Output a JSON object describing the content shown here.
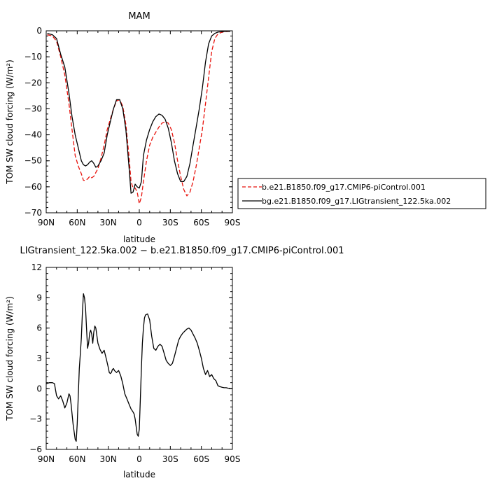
{
  "chart_data": [
    {
      "type": "line",
      "title": "MAM",
      "xlabel": "latitude",
      "ylabel": "TOM SW cloud forcing (W/m²)",
      "xlim": [
        90,
        -90
      ],
      "ylim": [
        -70,
        0
      ],
      "x_ticks": [
        90,
        60,
        30,
        0,
        -30,
        -60,
        -90
      ],
      "x_tick_labels": [
        "90N",
        "60N",
        "30N",
        "0",
        "30S",
        "60S",
        "90S"
      ],
      "y_ticks": [
        0,
        -10,
        -20,
        -30,
        -40,
        -50,
        -60,
        -70
      ],
      "y_tick_labels": [
        "0",
        "−10",
        "−20",
        "−30",
        "−40",
        "−50",
        "−60",
        "−70"
      ],
      "legend_position": "right",
      "series": [
        {
          "name": "b.e21.B1850.f09_g17.CMIP6-piControl.001",
          "color": "#e8120c",
          "dash": "dashed",
          "x": [
            89,
            84,
            80,
            76,
            72,
            68,
            65,
            62,
            59,
            56,
            54,
            52,
            50,
            48,
            46,
            44,
            42,
            40,
            37,
            34,
            31,
            28,
            25,
            22,
            19,
            16,
            13,
            10,
            8,
            6,
            4,
            2,
            0,
            -2,
            -4,
            -7,
            -10,
            -13,
            -16,
            -19,
            -22,
            -25,
            -28,
            -31,
            -34,
            -37,
            -40,
            -43,
            -46,
            -49,
            -52,
            -55,
            -58,
            -61,
            -64,
            -67,
            -70,
            -73,
            -76,
            -80,
            -84,
            -88
          ],
          "y": [
            -1.5,
            -2,
            -4,
            -10,
            -17,
            -28,
            -38,
            -48,
            -52,
            -55,
            -57.5,
            -57.5,
            -57,
            -56,
            -56.5,
            -56,
            -54.5,
            -53,
            -49,
            -44,
            -38,
            -34,
            -30,
            -27,
            -26.5,
            -29,
            -36,
            -48,
            -58,
            -60.5,
            -60.5,
            -62,
            -66.5,
            -64,
            -58,
            -50,
            -44,
            -41,
            -39,
            -37,
            -35.5,
            -35,
            -35.5,
            -38,
            -43,
            -50,
            -56,
            -61,
            -63.5,
            -62,
            -58,
            -52,
            -45,
            -38,
            -28,
            -18,
            -8,
            -3,
            -1.2,
            -0.5,
            -0.3,
            -0.2
          ]
        },
        {
          "name": "bg.e21.B1850.f09_g17.LIGtransient_122.5ka.002",
          "color": "#000000",
          "dash": "solid",
          "x": [
            89,
            84,
            80,
            76,
            72,
            68,
            65,
            62,
            59,
            56,
            54,
            52,
            50,
            48,
            46,
            44,
            42,
            40,
            37,
            34,
            31,
            28,
            25,
            22,
            19,
            16,
            13,
            10,
            8,
            6,
            4,
            2,
            0,
            -2,
            -4,
            -7,
            -10,
            -13,
            -16,
            -19,
            -22,
            -25,
            -28,
            -31,
            -34,
            -37,
            -40,
            -43,
            -46,
            -49,
            -52,
            -55,
            -58,
            -61,
            -64,
            -67,
            -70,
            -73,
            -76,
            -80,
            -84,
            -88
          ],
          "y": [
            -1,
            -1.5,
            -3,
            -9,
            -14,
            -24,
            -33,
            -40,
            -45,
            -50,
            -51.5,
            -52,
            -51.5,
            -50.5,
            -50,
            -51,
            -52.5,
            -52,
            -50,
            -47,
            -40,
            -35,
            -30,
            -26.5,
            -26.5,
            -30,
            -38,
            -52,
            -62.5,
            -62,
            -59,
            -60,
            -60.5,
            -58,
            -48,
            -42,
            -38,
            -35,
            -33,
            -32,
            -32.5,
            -34,
            -37.5,
            -43,
            -50,
            -55,
            -58,
            -58,
            -56,
            -51,
            -44,
            -37,
            -30,
            -22,
            -12,
            -5,
            -2,
            -1,
            -0.5,
            -0.3,
            -0.2,
            -0.2
          ]
        }
      ]
    },
    {
      "type": "line",
      "title": "LIGtransient_122.5ka.002 − b.e21.B1850.f09_g17.CMIP6-piControl.001",
      "xlabel": "latitude",
      "ylabel": "TOM SW cloud forcing (W/m²)",
      "xlim": [
        90,
        -90
      ],
      "ylim": [
        -6,
        12
      ],
      "x_ticks": [
        90,
        60,
        30,
        0,
        -30,
        -60,
        -90
      ],
      "x_tick_labels": [
        "90N",
        "60N",
        "30N",
        "0",
        "30S",
        "60S",
        "90S"
      ],
      "y_ticks": [
        12,
        9,
        6,
        3,
        0,
        -3,
        -6
      ],
      "y_tick_labels": [
        "12",
        "9",
        "6",
        "3",
        "0",
        "−3",
        "−6"
      ],
      "series": [
        {
          "color": "#000000",
          "dash": "solid",
          "x": [
            90,
            87,
            84,
            82,
            80,
            78,
            76,
            74,
            72,
            70,
            68,
            67,
            66,
            64,
            62,
            61,
            60,
            58,
            57,
            56,
            55,
            54,
            53,
            52,
            51,
            50,
            49,
            48,
            47,
            46,
            45,
            44,
            43,
            42,
            40,
            38,
            36,
            34,
            32,
            30,
            29,
            28,
            27,
            26,
            25,
            24,
            22,
            20,
            18,
            16,
            14,
            12,
            10,
            8,
            6,
            5,
            4,
            3,
            2,
            1,
            0,
            -1,
            -2,
            -3,
            -4,
            -5,
            -6,
            -8,
            -10,
            -12,
            -14,
            -16,
            -18,
            -20,
            -22,
            -24,
            -26,
            -28,
            -30,
            -32,
            -34,
            -36,
            -38,
            -40,
            -42,
            -44,
            -46,
            -48,
            -50,
            -52,
            -54,
            -56,
            -58,
            -60,
            -62,
            -64,
            -66,
            -68,
            -70,
            -72,
            -74,
            -76,
            -78,
            -80,
            -82,
            -84,
            -86,
            -88,
            -90
          ],
          "y": [
            0.5,
            0.6,
            0.6,
            0.5,
            -0.7,
            -1.0,
            -0.7,
            -1.2,
            -1.9,
            -1.4,
            -0.5,
            -0.7,
            -1.5,
            -3.5,
            -5.0,
            -5.2,
            -3.5,
            2.0,
            3.5,
            5.0,
            7.5,
            9.4,
            9.0,
            8.0,
            6.0,
            4.0,
            4.5,
            5.5,
            5.8,
            5.4,
            4.5,
            5.6,
            6.2,
            6.0,
            4.5,
            3.9,
            3.5,
            3.8,
            3.0,
            2.1,
            1.6,
            1.5,
            1.6,
            1.9,
            2.0,
            1.8,
            1.6,
            1.8,
            1.3,
            0.5,
            -0.5,
            -1.0,
            -1.5,
            -2.0,
            -2.3,
            -2.5,
            -3.0,
            -3.8,
            -4.5,
            -4.7,
            -4.0,
            -1.0,
            2.0,
            4.5,
            6.0,
            7.0,
            7.3,
            7.4,
            6.8,
            5.2,
            4.0,
            3.8,
            4.2,
            4.4,
            4.2,
            3.5,
            2.8,
            2.5,
            2.3,
            2.5,
            3.2,
            4.0,
            4.8,
            5.2,
            5.5,
            5.7,
            5.9,
            6.0,
            5.8,
            5.4,
            5.0,
            4.5,
            3.8,
            3.0,
            2.0,
            1.4,
            1.8,
            1.2,
            1.4,
            1.0,
            0.8,
            0.3,
            0.2,
            0.15,
            0.1,
            0.1,
            0.05,
            0.02,
            0.0
          ]
        }
      ]
    }
  ]
}
